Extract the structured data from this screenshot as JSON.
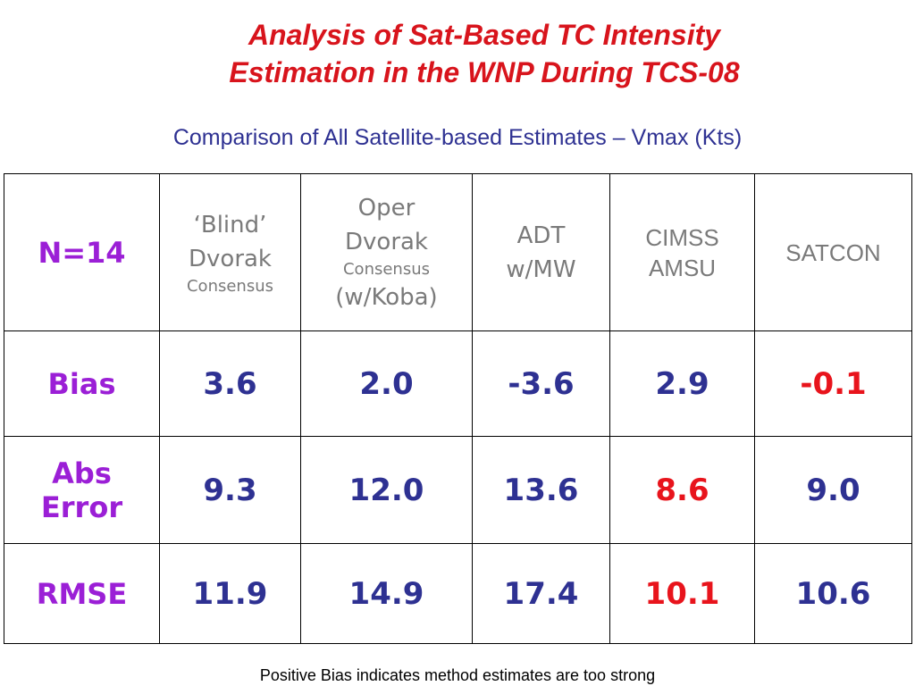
{
  "title": {
    "line1": "Analysis of Sat-Based TC Intensity",
    "line2": "Estimation in the WNP During TCS-08"
  },
  "subtitle": "Comparison of All Satellite-based Estimates – Vmax (Kts)",
  "table": {
    "corner": "N=14",
    "columns": [
      {
        "line1": "‘Blind’",
        "line2": "Dvorak",
        "line3": "Consensus"
      },
      {
        "line1": "Oper",
        "line2": "Dvorak",
        "line3": "Consensus",
        "line4": "(w/Koba)"
      },
      {
        "line1": "ADT",
        "line2": "w/MW"
      },
      {
        "line1": "CIMSS",
        "line2": "AMSU"
      },
      {
        "line1": "SATCON"
      }
    ],
    "rows": [
      {
        "label": "Bias",
        "values": [
          "3.6",
          "2.0",
          "-3.6",
          "2.9",
          "-0.1"
        ]
      },
      {
        "label_line1": "Abs",
        "label_line2": "Error",
        "values": [
          "9.3",
          "12.0",
          "13.6",
          "8.6",
          "9.0"
        ]
      },
      {
        "label": "RMSE",
        "values": [
          "11.9",
          "14.9",
          "17.4",
          "10.1",
          "10.6"
        ]
      }
    ],
    "colors": {
      "header_text": "#7a7a7a",
      "row_label": "#9b1fd6",
      "value": "#2e3192",
      "best_value": "#e8141c"
    }
  },
  "footnote": "Positive Bias indicates method estimates are too strong"
}
